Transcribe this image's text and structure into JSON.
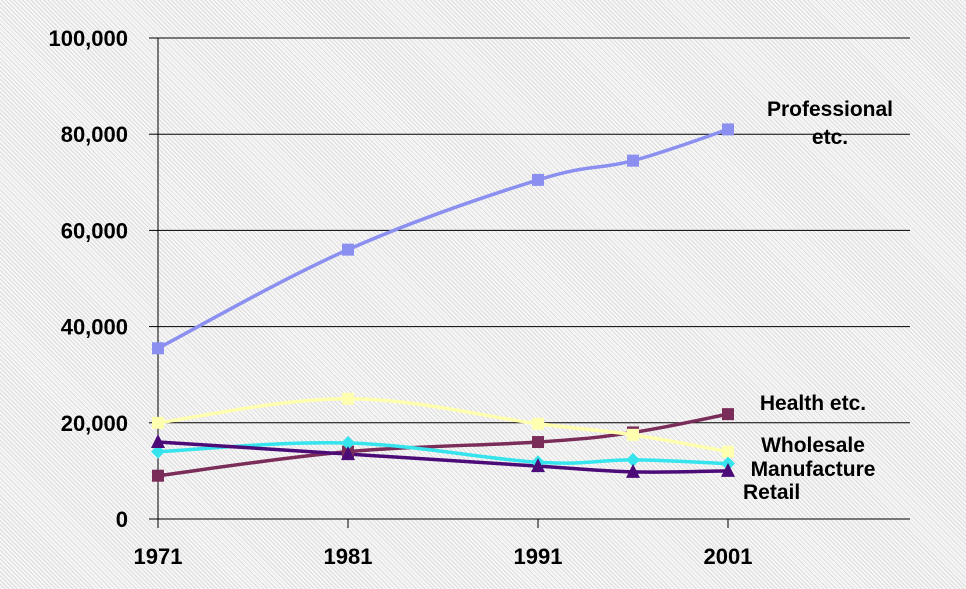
{
  "chart_data": {
    "type": "line",
    "x": [
      1971,
      1981,
      1991,
      1996,
      2001
    ],
    "x_ticks": [
      "1971",
      "1981",
      "1991",
      "2001"
    ],
    "y_ticks": [
      "0",
      "20,000",
      "40,000",
      "60,000",
      "80,000",
      "100,000"
    ],
    "ylim": [
      0,
      100000
    ],
    "xlim": [
      1971,
      2001
    ],
    "grid": "horizontal",
    "series": [
      {
        "name": "Professional etc.",
        "label_lines": [
          "Professional",
          "etc."
        ],
        "color": "#8a8ff0",
        "marker": "square",
        "values": [
          35500,
          56000,
          70500,
          74500,
          81000
        ]
      },
      {
        "name": "Health etc.",
        "label_lines": [
          "Health etc."
        ],
        "color": "#7b2d5a",
        "marker": "square",
        "values": [
          9000,
          14000,
          16000,
          18000,
          21800
        ]
      },
      {
        "name": "Wholesale",
        "label_lines": [
          "Wholesale"
        ],
        "color": "#ffffb0",
        "marker": "square",
        "values": [
          20000,
          25000,
          19800,
          17500,
          14000
        ]
      },
      {
        "name": "Manufacture",
        "label_lines": [
          "Manufacture"
        ],
        "color": "#35e4ec",
        "marker": "diamond",
        "values": [
          14000,
          15800,
          11800,
          12300,
          11500
        ]
      },
      {
        "name": "Retail",
        "label_lines": [
          "Retail"
        ],
        "color": "#4b0c78",
        "marker": "triangle",
        "values": [
          16000,
          13500,
          11000,
          9800,
          10000
        ]
      }
    ]
  }
}
